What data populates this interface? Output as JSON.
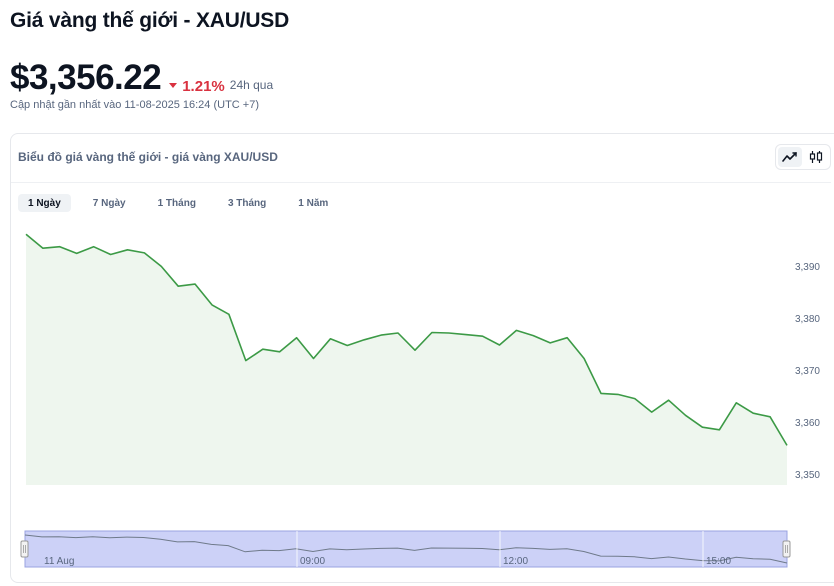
{
  "page": {
    "title": "Giá vàng thế giới - XAU/USD"
  },
  "price": {
    "value": "$3,356.22",
    "change": "1.21%",
    "change_period": "24h qua",
    "updated": "Cập nhật gần nhất vào 11-08-2025 16:24 (UTC +7)"
  },
  "colors": {
    "line": "#3c9a46",
    "area": "#eef6ee",
    "negative": "#d93240",
    "navigator_fill": "#ccd1f7",
    "navigator_border": "#9aa3e0"
  },
  "card": {
    "title": "Biểu đồ giá vàng thế giới - giá vàng XAU/USD",
    "view_icons": [
      "line-chart-icon",
      "candlestick-icon"
    ]
  },
  "tabs": [
    {
      "label": "1 Ngày",
      "active": true
    },
    {
      "label": "7 Ngày",
      "active": false
    },
    {
      "label": "1 Tháng",
      "active": false
    },
    {
      "label": "3 Tháng",
      "active": false
    },
    {
      "label": "1 Năm",
      "active": false
    }
  ],
  "chart_data": {
    "type": "area",
    "title": "",
    "xlabel": "",
    "ylabel": "",
    "ylim": [
      3348,
      3397
    ],
    "y_ticks": [
      3350,
      3360,
      3370,
      3380,
      3390
    ],
    "y_tick_labels": [
      "3,350",
      "3,360",
      "3,370",
      "3,380",
      "3,390"
    ],
    "grid": false,
    "series": [
      {
        "values": [
          3396.2,
          3393.5,
          3393.8,
          3392.5,
          3393.8,
          3392.3,
          3393.2,
          3392.6,
          3390.0,
          3386.2,
          3386.6,
          3382.6,
          3380.8,
          3371.9,
          3374.1,
          3373.6,
          3376.3,
          3372.3,
          3376.1,
          3374.8,
          3375.9,
          3376.8,
          3377.2,
          3373.9,
          3377.3,
          3377.2,
          3376.9,
          3376.6,
          3374.9,
          3377.7,
          3376.7,
          3375.3,
          3376.3,
          3372.3,
          3365.6,
          3365.4,
          3364.6,
          3362.0,
          3364.3,
          3361.4,
          3359.1,
          3358.6,
          3363.8,
          3361.8,
          3361.1,
          3355.6
        ]
      }
    ],
    "navigator": {
      "x_labels": [
        "11 Aug",
        "09:00",
        "12:00",
        "15:00"
      ]
    }
  }
}
